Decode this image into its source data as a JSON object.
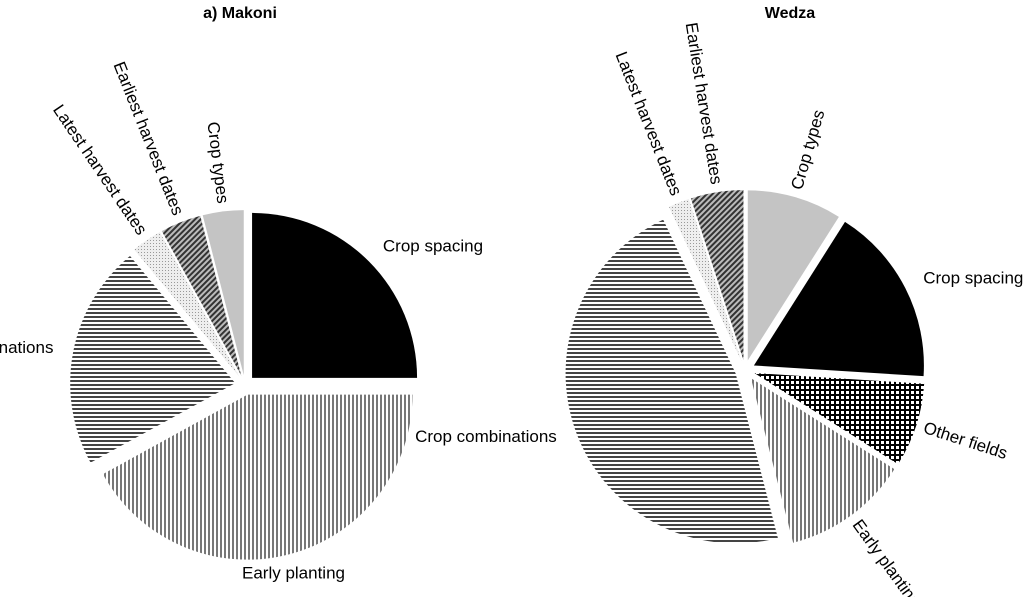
{
  "chart_data": [
    {
      "type": "pie",
      "title": "a) Makoni",
      "categories": [
        "Crop spacing",
        "Early planting",
        "Crop combinations",
        "Latest harvest dates",
        "Earliest harvest dates",
        "Crop types"
      ],
      "values": [
        25,
        42,
        22,
        3,
        4,
        4
      ],
      "colors": [
        "#000000",
        "#8a8a8a",
        "#555555",
        "#d8d8d8",
        "#666666",
        "#c4c4c4"
      ],
      "patterns": [
        "solid",
        "vertical",
        "horizontal",
        "dots",
        "diagonal",
        "solid"
      ]
    },
    {
      "type": "pie",
      "title": "Wedza",
      "categories": [
        "Crop types",
        "Crop spacing",
        "Other fields",
        "Early planting",
        "Crop combinations",
        "Latest harvest dates",
        "Earliest harvest dates"
      ],
      "values": [
        9,
        17,
        8,
        12,
        47,
        2,
        5
      ],
      "colors": [
        "#c4c4c4",
        "#000000",
        "#000000",
        "#8a8a8a",
        "#555555",
        "#d8d8d8",
        "#666666"
      ],
      "patterns": [
        "solid",
        "solid",
        "grid",
        "vertical",
        "horizontal",
        "dots",
        "diagonal"
      ]
    }
  ]
}
